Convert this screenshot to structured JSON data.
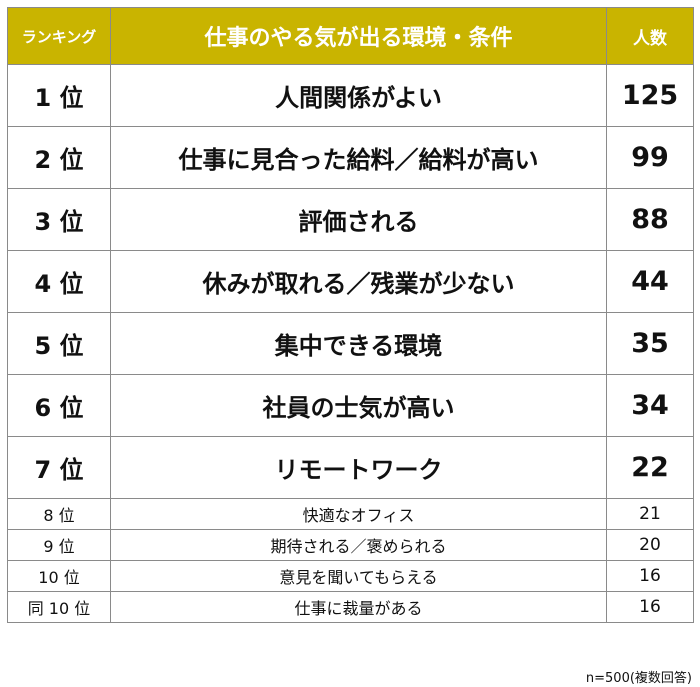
{
  "chart_data": {
    "type": "table",
    "title": "仕事のやる気が出る環境・条件",
    "columns": [
      "ランキング",
      "仕事のやる気が出る環境・条件",
      "人数"
    ],
    "rows": [
      {
        "rank": "1 位",
        "condition": "人間関係がよい",
        "count": 125
      },
      {
        "rank": "2 位",
        "condition": "仕事に見合った給料／給料が高い",
        "count": 99
      },
      {
        "rank": "3 位",
        "condition": "評価される",
        "count": 88
      },
      {
        "rank": "4 位",
        "condition": "休みが取れる／残業が少ない",
        "count": 44
      },
      {
        "rank": "5 位",
        "condition": "集中できる環境",
        "count": 35
      },
      {
        "rank": "6 位",
        "condition": "社員の士気が高い",
        "count": 34
      },
      {
        "rank": "7 位",
        "condition": "リモートワーク",
        "count": 22
      },
      {
        "rank": "8 位",
        "condition": "快適なオフィス",
        "count": 21
      },
      {
        "rank": "9 位",
        "condition": "期待される／褒められる",
        "count": 20
      },
      {
        "rank": "10 位",
        "condition": "意見を聞いてもらえる",
        "count": 16
      },
      {
        "rank": "同 10 位",
        "condition": "仕事に裁量がある",
        "count": 16
      }
    ],
    "note": "n=500(複数回答)",
    "colors": {
      "header_bg": "#c9b400",
      "header_text": "#ffffff",
      "border": "#8a8a8a"
    }
  }
}
